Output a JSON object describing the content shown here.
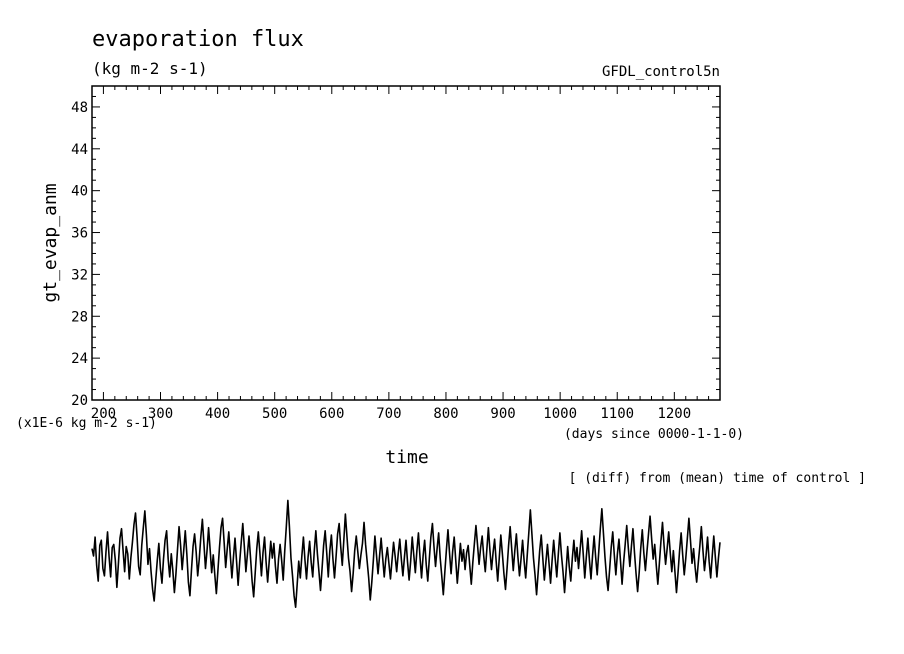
{
  "chart_data": {
    "type": "line",
    "title": "evaporation flux",
    "units": "(kg m-2 s-1)",
    "dataset": "GFDL_control5n",
    "ylabel": "gt_evap_anm",
    "xlabel": "time",
    "yscale_note": "(x1E-6 kg m-2 s-1)",
    "xunits_note": "(days since 0000-1-1-0)",
    "footnote": "[ (diff) from (mean) time of control ]",
    "xlim": [
      180,
      1280
    ],
    "ylim": [
      20,
      50
    ],
    "x_ticks": [
      200,
      300,
      400,
      500,
      600,
      700,
      800,
      900,
      1000,
      1100,
      1200
    ],
    "y_ticks": [
      20,
      24,
      28,
      32,
      36,
      40,
      44,
      48
    ],
    "grid": false,
    "series": [
      {
        "values": [
          5.8,
          5.1,
          6.9,
          4.2,
          2.7,
          6.1,
          6.6,
          3.9,
          3.2,
          5.5,
          7.4,
          5.0,
          3.1,
          5.9,
          6.2,
          4.7,
          2.1,
          4.4,
          6.8,
          7.7,
          5.6,
          3.6,
          6.0,
          5.3,
          2.9,
          4.9,
          6.4,
          8.1,
          9.2,
          6.9,
          4.1,
          3.3,
          6.1,
          7.8,
          9.4,
          7.1,
          4.3,
          5.8,
          3.6,
          1.9,
          0.8,
          2.8,
          4.7,
          6.3,
          3.9,
          2.5,
          4.8,
          6.6,
          7.5,
          4.8,
          3.1,
          5.3,
          3.7,
          1.6,
          3.4,
          5.7,
          7.9,
          6.1,
          3.8,
          5.6,
          7.5,
          5.3,
          2.6,
          1.3,
          3.8,
          6.0,
          7.2,
          5.5,
          3.2,
          4.8,
          6.9,
          8.6,
          6.3,
          3.9,
          5.6,
          7.8,
          5.7,
          3.5,
          5.2,
          3.3,
          1.5,
          3.7,
          5.9,
          7.8,
          8.7,
          6.4,
          4.0,
          5.8,
          7.4,
          5.1,
          3.0,
          5.0,
          6.8,
          4.6,
          2.3,
          4.5,
          6.4,
          8.2,
          6.0,
          3.6,
          5.3,
          7.0,
          4.9,
          2.7,
          1.2,
          3.5,
          5.8,
          7.4,
          5.4,
          3.2,
          5.4,
          6.9,
          4.5,
          2.6,
          4.6,
          6.5,
          4.9,
          6.3,
          4.1,
          2.5,
          4.8,
          6.2,
          4.7,
          2.8,
          5.6,
          7.9,
          10.4,
          7.9,
          4.9,
          3.2,
          1.3,
          0.2,
          2.4,
          4.6,
          3.0,
          5.1,
          6.9,
          4.7,
          2.9,
          5.0,
          6.5,
          4.5,
          3.1,
          5.6,
          7.5,
          5.3,
          3.6,
          1.8,
          3.9,
          6.1,
          7.5,
          5.4,
          3.1,
          5.6,
          7.1,
          4.8,
          3.0,
          5.0,
          7.2,
          8.2,
          6.0,
          4.2,
          6.6,
          9.1,
          7.0,
          4.9,
          3.6,
          1.7,
          3.4,
          5.6,
          7.0,
          5.5,
          3.9,
          5.2,
          6.3,
          8.3,
          6.2,
          4.6,
          3.0,
          0.9,
          2.6,
          4.7,
          7.0,
          5.2,
          3.4,
          5.1,
          6.8,
          4.9,
          3.1,
          4.8,
          5.9,
          4.4,
          2.9,
          4.7,
          6.4,
          5.1,
          3.6,
          5.3,
          6.7,
          4.8,
          3.2,
          5.0,
          6.6,
          4.5,
          2.8,
          4.6,
          6.9,
          5.2,
          3.5,
          5.6,
          7.3,
          5.0,
          3.0,
          5.1,
          6.6,
          4.3,
          2.7,
          4.8,
          6.9,
          8.2,
          6.0,
          4.1,
          5.8,
          7.3,
          4.9,
          3.2,
          1.4,
          3.6,
          5.7,
          7.6,
          5.4,
          3.4,
          5.5,
          6.9,
          4.7,
          2.5,
          4.3,
          6.3,
          4.6,
          5.7,
          3.8,
          5.4,
          6.1,
          4.2,
          2.4,
          4.5,
          6.3,
          8.0,
          6.2,
          4.3,
          5.9,
          7.0,
          5.1,
          3.6,
          5.7,
          7.8,
          5.6,
          3.8,
          5.4,
          6.7,
          4.6,
          2.7,
          4.9,
          7.1,
          5.3,
          3.4,
          1.9,
          3.9,
          6.1,
          7.9,
          5.8,
          3.7,
          5.6,
          7.2,
          5.0,
          3.2,
          4.8,
          6.6,
          4.6,
          3.0,
          5.2,
          7.3,
          9.5,
          7.2,
          4.9,
          3.3,
          1.4,
          3.5,
          5.6,
          7.1,
          4.9,
          2.8,
          4.5,
          6.2,
          4.4,
          2.5,
          4.7,
          6.6,
          4.8,
          3.1,
          5.3,
          7.3,
          5.2,
          3.6,
          1.6,
          3.7,
          6.0,
          4.1,
          2.7,
          4.9,
          6.6,
          4.6,
          5.9,
          3.9,
          5.7,
          7.5,
          5.3,
          3.0,
          5.0,
          6.8,
          4.7,
          2.9,
          5.1,
          7.0,
          5.0,
          3.3,
          5.5,
          7.7,
          9.6,
          7.3,
          5.0,
          3.1,
          1.8,
          3.8,
          5.9,
          7.4,
          5.2,
          3.3,
          5.3,
          6.7,
          4.6,
          2.4,
          4.5,
          6.2,
          8.0,
          5.9,
          4.1,
          6.0,
          7.7,
          5.4,
          3.4,
          1.7,
          3.5,
          5.8,
          7.6,
          5.4,
          3.7,
          5.5,
          7.2,
          8.9,
          6.8,
          4.8,
          6.2,
          4.2,
          2.4,
          4.4,
          6.5,
          8.3,
          6.1,
          4.3,
          5.8,
          7.4,
          5.4,
          3.6,
          5.6,
          3.6,
          1.6,
          3.5,
          5.6,
          7.3,
          5.2,
          3.3,
          4.9,
          6.8,
          8.7,
          6.6,
          4.4,
          5.8,
          4.0,
          2.6,
          4.4,
          6.0,
          7.9,
          5.7,
          3.7,
          5.1,
          6.9,
          4.6,
          3.0,
          5.1,
          7.0,
          5.0,
          3.1,
          4.9,
          6.4
        ]
      }
    ]
  }
}
